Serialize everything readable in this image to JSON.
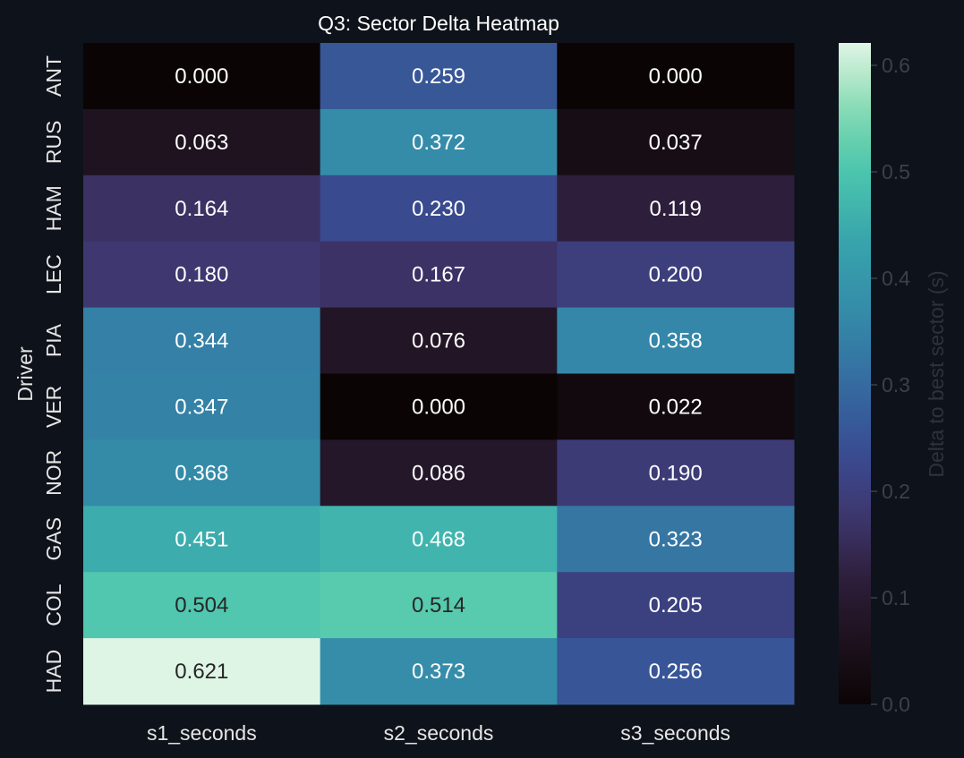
{
  "chart_data": {
    "type": "heatmap",
    "title": "Q3: Sector Delta Heatmap",
    "ylabel": "Driver",
    "xlabel": "",
    "colorbar_label": "Delta to best sector (s)",
    "colormap": "mako",
    "vmin": 0.0,
    "vmax": 0.621,
    "colorbar_ticks": [
      "0.0",
      "0.1",
      "0.2",
      "0.3",
      "0.4",
      "0.5",
      "0.6"
    ],
    "columns": [
      "s1_seconds",
      "s2_seconds",
      "s3_seconds"
    ],
    "rows": [
      "ANT",
      "RUS",
      "HAM",
      "LEC",
      "PIA",
      "VER",
      "NOR",
      "GAS",
      "COL",
      "HAD"
    ],
    "values": [
      [
        0.0,
        0.259,
        0.0
      ],
      [
        0.063,
        0.372,
        0.037
      ],
      [
        0.164,
        0.23,
        0.119
      ],
      [
        0.18,
        0.167,
        0.2
      ],
      [
        0.344,
        0.076,
        0.358
      ],
      [
        0.347,
        0.0,
        0.022
      ],
      [
        0.368,
        0.086,
        0.19
      ],
      [
        0.451,
        0.468,
        0.323
      ],
      [
        0.504,
        0.514,
        0.205
      ],
      [
        0.621,
        0.373,
        0.256
      ]
    ],
    "annotations": [
      [
        "0.000",
        "0.259",
        "0.000"
      ],
      [
        "0.063",
        "0.372",
        "0.037"
      ],
      [
        "0.164",
        "0.230",
        "0.119"
      ],
      [
        "0.180",
        "0.167",
        "0.200"
      ],
      [
        "0.344",
        "0.076",
        "0.358"
      ],
      [
        "0.347",
        "0.000",
        "0.022"
      ],
      [
        "0.368",
        "0.086",
        "0.190"
      ],
      [
        "0.451",
        "0.468",
        "0.323"
      ],
      [
        "0.504",
        "0.514",
        "0.205"
      ],
      [
        "0.621",
        "0.373",
        "0.256"
      ]
    ],
    "background_color": "#0e121a"
  }
}
